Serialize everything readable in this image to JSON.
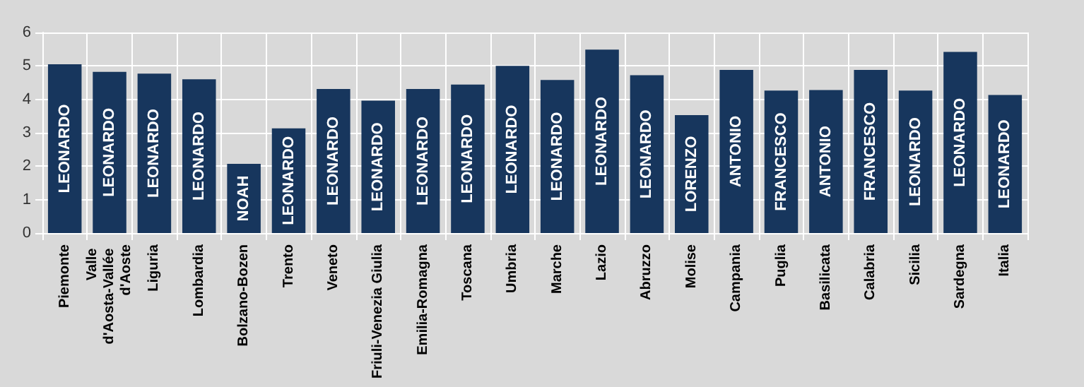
{
  "chart_data": {
    "type": "bar",
    "categories": [
      "Piemonte",
      "Valle d'Aosta-Vallée d'Aoste",
      "Liguria",
      "Lombardia",
      "Bolzano-Bozen",
      "Trento",
      "Veneto",
      "Friuli-Venezia Giulia",
      "Emilia-Romagna",
      "Toscana",
      "Umbria",
      "Marche",
      "Lazio",
      "Abruzzo",
      "Molise",
      "Campania",
      "Puglia",
      "Basilicata",
      "Calabria",
      "Sicilia",
      "Sardegna",
      "Italia"
    ],
    "values": [
      5.05,
      4.82,
      4.77,
      4.6,
      2.07,
      3.13,
      4.31,
      3.96,
      4.31,
      4.44,
      5.0,
      4.58,
      5.49,
      4.72,
      3.53,
      4.88,
      4.26,
      4.28,
      4.88,
      4.26,
      5.42,
      4.13
    ],
    "value_labels": [
      "LEONARDO",
      "LEONARDO",
      "LEONARDO",
      "LEONARDO",
      "NOAH",
      "LEONARDO",
      "LEONARDO",
      "LEONARDO",
      "LEONARDO",
      "LEONARDO",
      "LEONARDO",
      "LEONARDO",
      "LEONARDO",
      "LEONARDO",
      "LORENZO",
      "ANTONIO",
      "FRANCESCO",
      "ANTONIO",
      "FRANCESCO",
      "LEONARDO",
      "LEONARDO",
      "LEONARDO"
    ],
    "color": "#17365d",
    "ylim": [
      0,
      6
    ],
    "yticks": [
      0,
      1,
      2,
      3,
      4,
      5,
      6
    ],
    "grid": true
  }
}
